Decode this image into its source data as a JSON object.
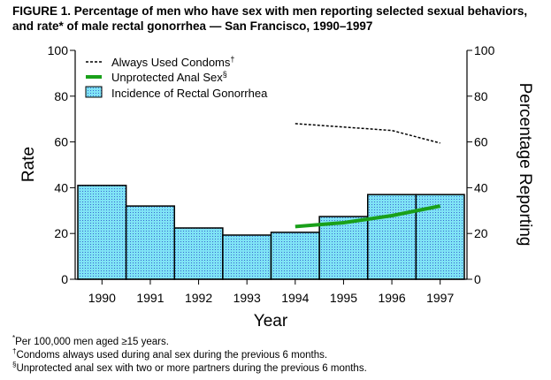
{
  "title": "FIGURE 1. Percentage of men who have sex with men reporting selected sexual behaviors, and rate* of male rectal gonorrhea — San Francisco, 1990–1997",
  "footnotes": [
    {
      "mark": "*",
      "text": "Per 100,000 men aged ≥15 years."
    },
    {
      "mark": "†",
      "text": "Condoms always used during anal sex during the previous 6 months."
    },
    {
      "mark": "§",
      "text": "Unprotected anal sex with two or more partners during the previous 6 months."
    }
  ],
  "chart_data": {
    "type": "bar+line",
    "xlabel": "Year",
    "ylabel_left": "Rate",
    "ylabel_right": "Percentage Reporting",
    "categories": [
      "1990",
      "1991",
      "1992",
      "1993",
      "1994",
      "1995",
      "1996",
      "1997"
    ],
    "ylim_left": [
      0,
      100
    ],
    "ylim_right": [
      0,
      100
    ],
    "yticks": [
      0,
      20,
      40,
      60,
      80,
      100
    ],
    "grid": false,
    "legend_placement": "top-left",
    "series": [
      {
        "name": "Always Used Condoms",
        "mark": "†",
        "type": "line",
        "style": "dotted",
        "color": "#000000",
        "axis": "right",
        "values": [
          null,
          null,
          null,
          null,
          68,
          66.5,
          65,
          59.5
        ]
      },
      {
        "name": "Unprotected Anal Sex",
        "mark": "§",
        "type": "line",
        "style": "thick",
        "color": "#1aa01a",
        "axis": "right",
        "values": [
          null,
          null,
          null,
          null,
          23,
          24.7,
          27.8,
          32
        ]
      },
      {
        "name": "Incidence of Rectal Gonorrhea",
        "type": "bar",
        "color": "#7fdcf0",
        "axis": "left",
        "values": [
          41,
          32,
          22.4,
          19.3,
          20.5,
          27.4,
          37,
          37
        ]
      }
    ]
  }
}
